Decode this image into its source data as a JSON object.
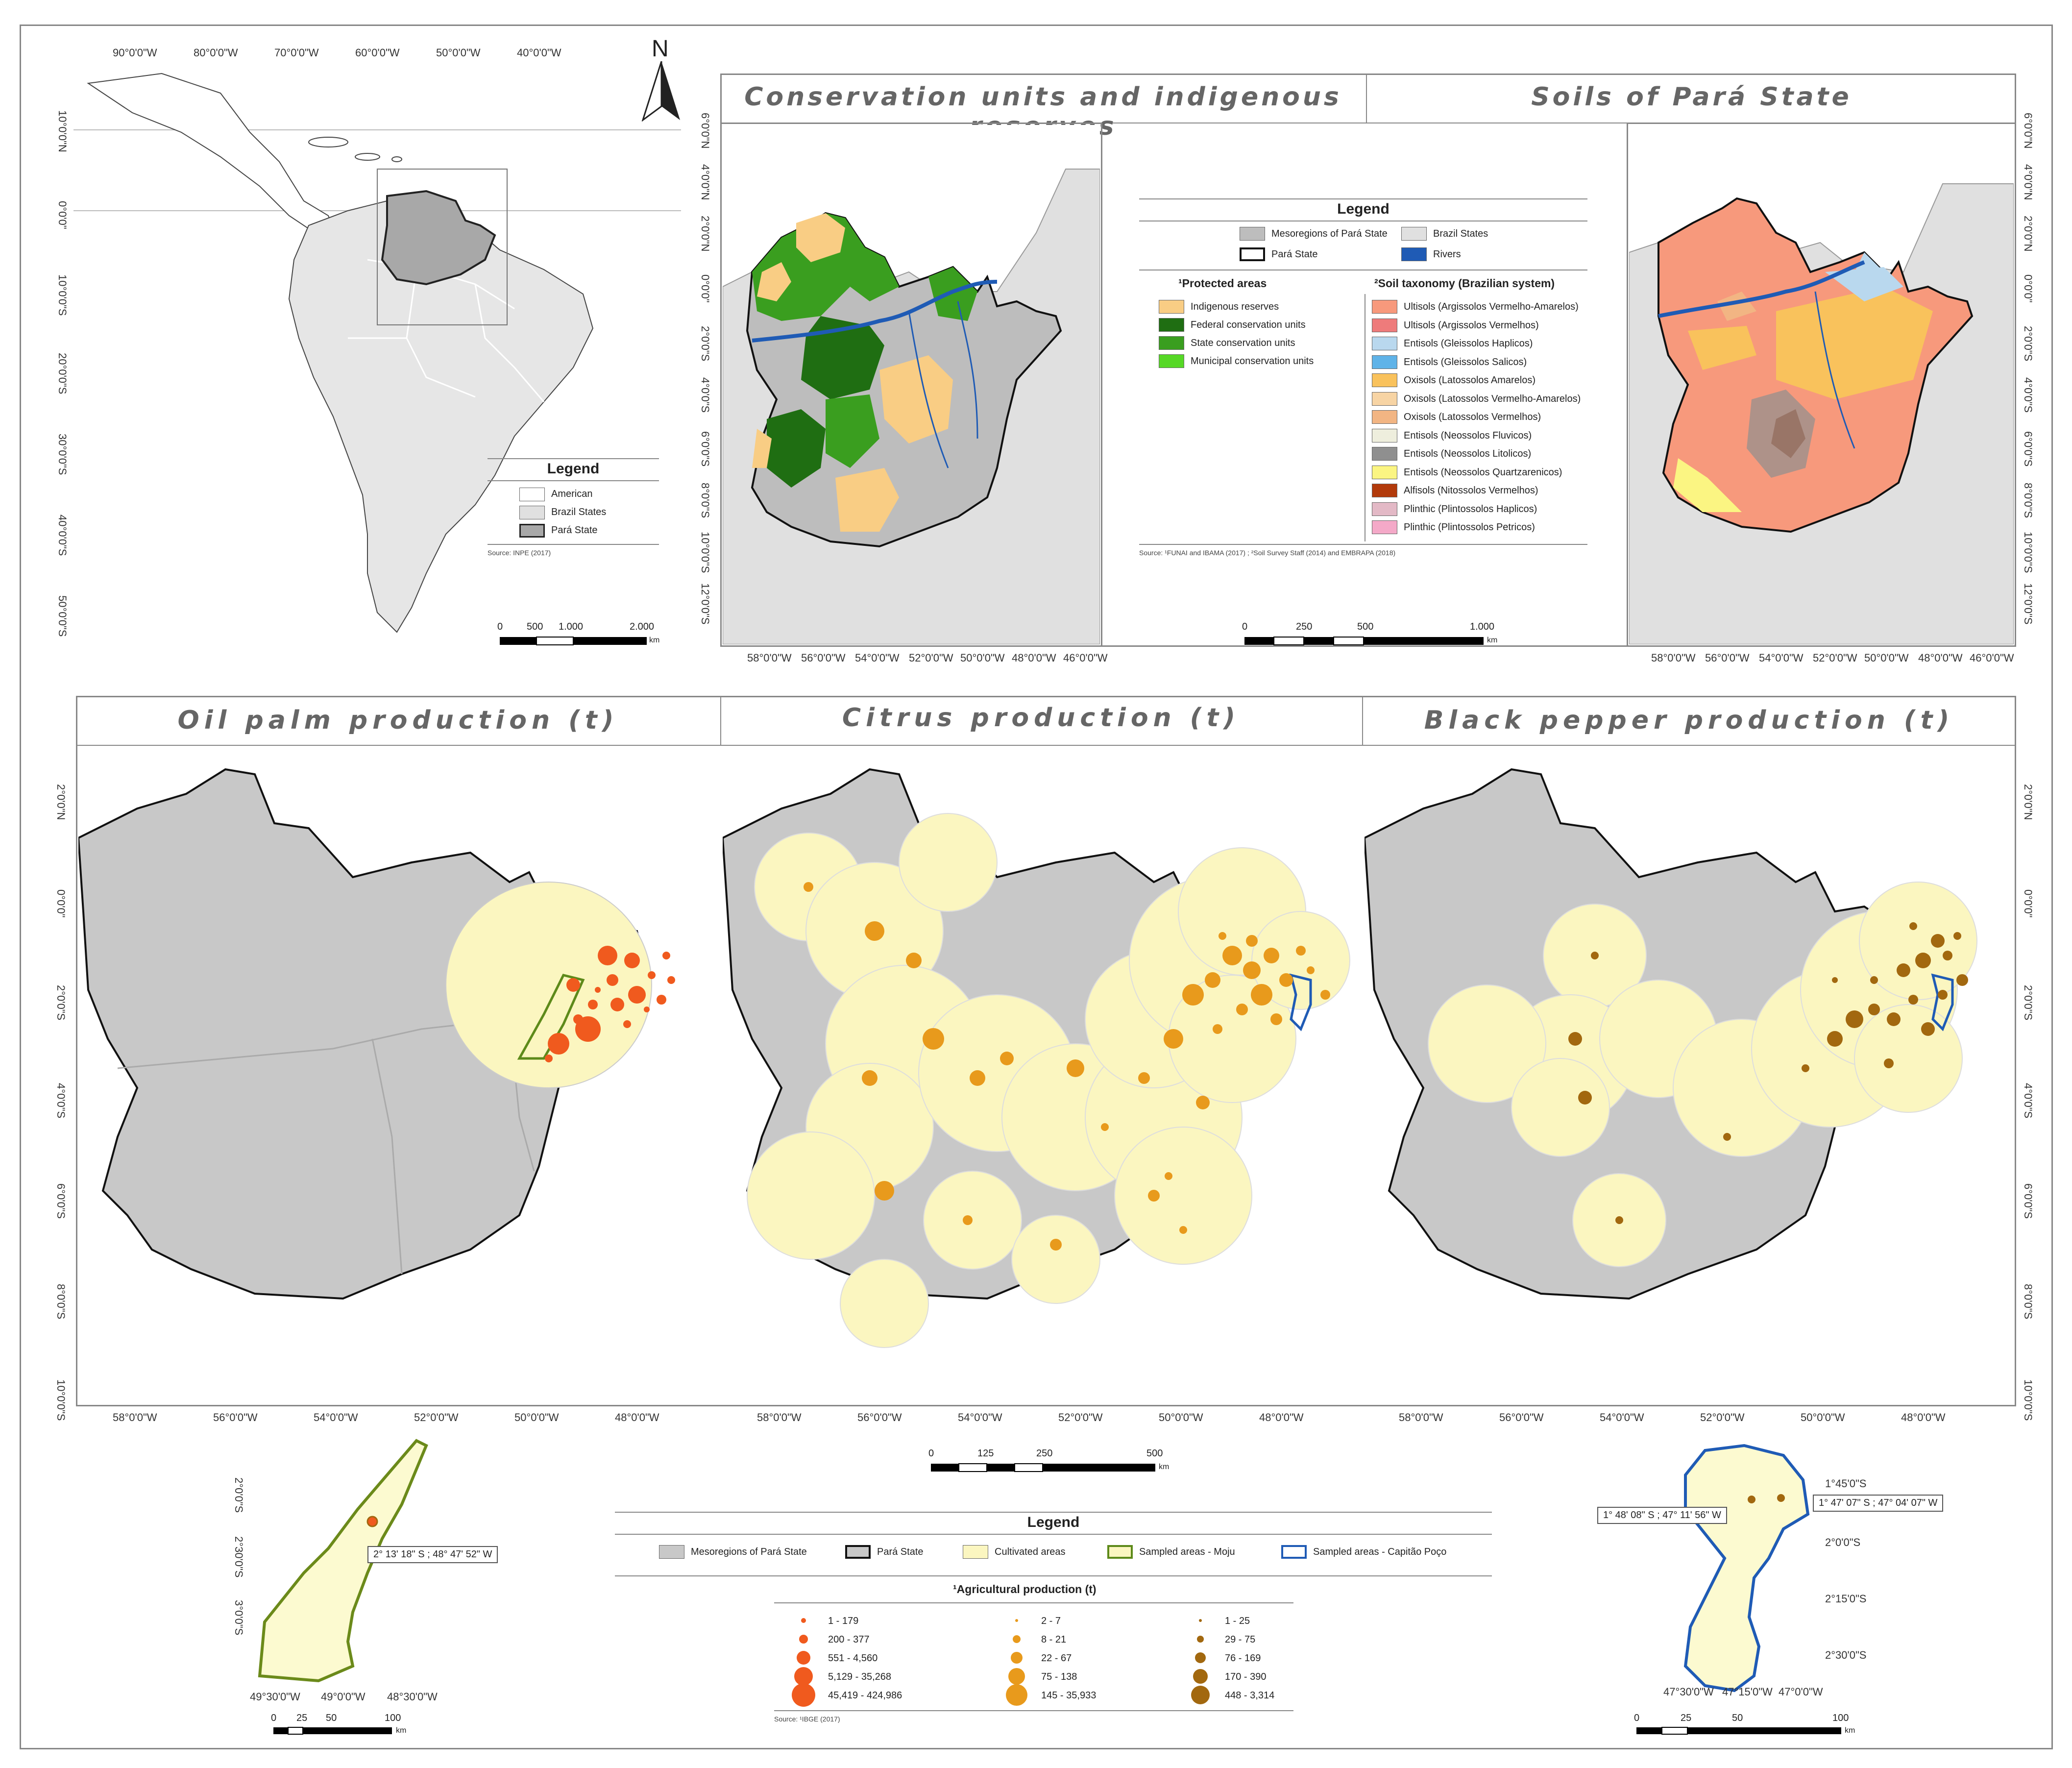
{
  "north_arrow": "N",
  "top": {
    "conservation_title": "Conservation units and indigenous reserves",
    "soils_title": "Soils of Pará State"
  },
  "bottom": {
    "oil_palm_title": "Oil palm production (t)",
    "citrus_title": "Citrus production (t)",
    "pepper_title": "Black pepper production (t)"
  },
  "inset_legend": {
    "title": "Legend",
    "items": [
      "American",
      "Brazil States",
      "Pará State"
    ],
    "source": "Source: INPE (2017)",
    "scale": [
      "0",
      "500",
      "1.000",
      "2.000"
    ],
    "unit": "km"
  },
  "inset_lon_ticks": [
    "90°0'0\"W",
    "80°0'0\"W",
    "70°0'0\"W",
    "60°0'0\"W",
    "50°0'0\"W",
    "40°0'0\"W"
  ],
  "inset_lat_ticks": [
    "10°0'0\"N",
    "0°0'0\"",
    "10°0'0\"S",
    "20°0'0\"S",
    "30°0'0\"S",
    "40°0'0\"S",
    "50°0'0\"S"
  ],
  "top_lat_ticks": [
    "6°0'0\"N",
    "4°0'0\"N",
    "2°0'0\"N",
    "0°0'0\"",
    "2°0'0\"S",
    "4°0'0\"S",
    "6°0'0\"S",
    "8°0'0\"S",
    "10°0'0\"S",
    "12°0'0\"S"
  ],
  "top_lon_ticks": [
    "58°0'0\"W",
    "56°0'0\"W",
    "54°0'0\"W",
    "52°0'0\"W",
    "50°0'0\"W",
    "48°0'0\"W",
    "46°0'0\"W"
  ],
  "bottom_lat_ticks": [
    "2°0'0\"N",
    "0°0'0\"",
    "2°0'0\"S",
    "4°0'0\"S",
    "6°0'0\"S",
    "8°0'0\"S",
    "10°0'0\"S"
  ],
  "bottom_lon_ticks": [
    "58°0'0\"W",
    "56°0'0\"W",
    "54°0'0\"W",
    "52°0'0\"W",
    "50°0'0\"W",
    "48°0'0\"W"
  ],
  "middle_legend": {
    "title": "Legend",
    "mesoregions": "Mesoregions of Pará State",
    "brazil_states": "Brazil States",
    "para_state": "Pará State",
    "rivers": "Rivers",
    "protected_head": "¹Protected areas",
    "protected": [
      "Indigenous reserves",
      "Federal conservation units",
      "State conservation units",
      "Municipal conservation units"
    ],
    "protected_colors": [
      "#f9cd84",
      "#1f6e12",
      "#3a9e1f",
      "#56d826"
    ],
    "soil_head": "²Soil taxonomy (Brazilian system)",
    "soils": [
      "Ultisols (Argissolos Vermelho-Amarelos)",
      "Ultisols (Argissolos Vermelhos)",
      "Entisols (Gleissolos Haplicos)",
      "Entisols (Gleissolos Salicos)",
      "Oxisols (Latossolos Amarelos)",
      "Oxisols (Latossolos Vermelho-Amarelos)",
      "Oxisols (Latossolos Vermelhos)",
      "Entisols (Neossolos Fluvicos)",
      "Entisols (Neossolos Litolicos)",
      "Entisols (Neossolos Quartzarenicos)",
      "Alfisols (Nitossolos Vermelhos)",
      "Plinthic (Plintossolos Haplicos)",
      "Plinthic (Plintossolos Petricos)"
    ],
    "soil_colors": [
      "#f7997c",
      "#ee7b7b",
      "#b9d8ee",
      "#5fb3e8",
      "#f9c25c",
      "#f7d4a4",
      "#f2b583",
      "#eeeedd",
      "#8f8f8f",
      "#fbf582",
      "#b23a0b",
      "#e3b9c6",
      "#f4a9c8"
    ],
    "source": "Source: ¹FUNAI and IBAMA (2017) ; ²Soil Survey Staff (2014) and EMBRAPA (2018)",
    "scale": [
      "0",
      "250",
      "500",
      "1.000"
    ],
    "unit": "km"
  },
  "bottom_scale": {
    "labels": [
      "0",
      "125",
      "250",
      "500"
    ],
    "unit": "km"
  },
  "bottom_legend": {
    "title": "Legend",
    "items": [
      "Mesoregions of Pará State",
      "Pará State",
      "Cultivated areas",
      "Sampled areas - Moju",
      "Sampled areas - Capitão Poço"
    ],
    "production_head": "¹Agricultural production (t)",
    "oil_palm_classes": [
      "1 - 179",
      "200 - 377",
      "551 - 4,560",
      "5,129 - 35,268",
      "45,419 - 424,986"
    ],
    "citrus_classes": [
      "2 - 7",
      "8 - 21",
      "22 - 67",
      "75 - 138",
      "145 - 35,933"
    ],
    "pepper_classes": [
      "1 - 25",
      "29 - 75",
      "76 - 169",
      "170 - 390",
      "448 - 3,314"
    ],
    "oil_palm_color": "#f05a1e",
    "citrus_color": "#e89a1c",
    "pepper_color": "#a2680f",
    "source": "Source: ¹IBGE (2017)"
  },
  "moju_inset": {
    "lat_ticks": [
      "2°0'0\"S",
      "2°30'0\"S",
      "3°0'0\"S"
    ],
    "lon_ticks": [
      "49°30'0\"W",
      "49°0'0\"W",
      "48°30'0\"W"
    ],
    "callout": "2° 13' 18\" S ; 48° 47' 52\" W",
    "scale": [
      "0",
      "25",
      "50",
      "100"
    ],
    "unit": "km"
  },
  "capitao_inset": {
    "lat_ticks": [
      "1°45'0\"S",
      "2°0'0\"S",
      "2°15'0\"S",
      "2°30'0\"S"
    ],
    "lon_ticks": [
      "47°30'0\"W",
      "47°15'0\"W",
      "47°0'0\"W"
    ],
    "callout_left": "1° 48' 08\" S ; 47° 11' 56\" W",
    "callout_right": "1° 47' 07\" S ; 47° 04' 07\" W",
    "scale": [
      "0",
      "25",
      "50",
      "100"
    ],
    "unit": "km"
  },
  "colors": {
    "mesoregion_gray": "#c8c8c8",
    "brazil_gray": "#e0e0e0",
    "cultivated": "#fbf6c0",
    "moju_outline": "#5d8a1a",
    "capitao_outline": "#1f5bb5",
    "river": "#1f5bb5"
  }
}
